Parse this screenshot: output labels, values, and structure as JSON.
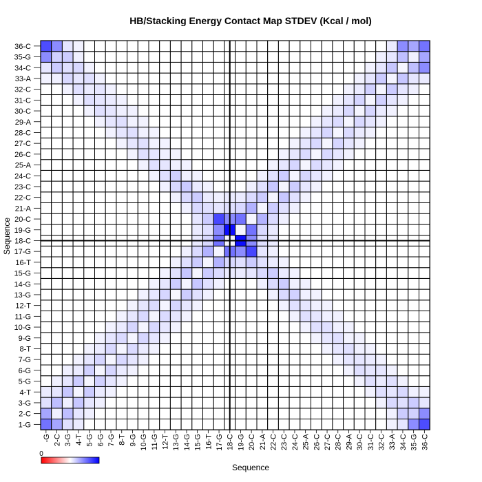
{
  "chart_data": {
    "type": "heatmap",
    "title": "HB/Stacking Energy Contact Map STDEV (Kcal / mol)",
    "xlabel": "Sequence",
    "ylabel": "Sequence",
    "labels": [
      "1-G",
      "2-C",
      "3-G",
      "4-T",
      "5-G",
      "6-G",
      "7-G",
      "8-T",
      "9-G",
      "10-G",
      "11-G",
      "12-T",
      "13-G",
      "14-G",
      "15-G",
      "16-T",
      "17-G",
      "18-C",
      "19-G",
      "20-C",
      "21-A",
      "22-C",
      "23-C",
      "24-C",
      "25-A",
      "26-C",
      "27-C",
      "28-C",
      "29-A",
      "30-C",
      "31-C",
      "32-C",
      "33-A",
      "34-C",
      "35-G",
      "36-C"
    ],
    "x_tick_labels_shown": [
      "-G",
      "2-C",
      "3-G",
      "4-T",
      "5-G",
      "6-G",
      "7-G",
      "8-T",
      "9-G",
      "10-G",
      "11-G",
      "12-T",
      "13-G",
      "14-G",
      "15-G",
      "16-T",
      "17-G",
      "18-C",
      "19-G",
      "20-C",
      "21-A",
      "22-C",
      "23-C",
      "24-C",
      "25-A",
      "26-C",
      "27-C",
      "28-C",
      "29-A",
      "30-C",
      "31-C",
      "32-C",
      "33-A",
      "34-C",
      "35-G",
      "36-C"
    ],
    "color_scale": {
      "low": "#ff0000",
      "mid": "#ffffff",
      "high": "#0000ff"
    },
    "colorbar_tick": "0",
    "divider_after_index": 17,
    "symmetry": "matrix symmetric about both diagonals",
    "values": [
      [
        0.55,
        0.35,
        0.12,
        0.08,
        0,
        0,
        0,
        0,
        0,
        0,
        0,
        0,
        0,
        0,
        0,
        0,
        0,
        0,
        0,
        0,
        0,
        0,
        0,
        0,
        0,
        0,
        0,
        0,
        0,
        0,
        0,
        0,
        0.05,
        0.1,
        0.45,
        0.7
      ],
      [
        0.35,
        0.06,
        0.25,
        0.1,
        0.06,
        0,
        0,
        0,
        0,
        0,
        0,
        0,
        0,
        0,
        0,
        0,
        0,
        0,
        0,
        0,
        0,
        0,
        0,
        0,
        0,
        0,
        0,
        0,
        0,
        0,
        0,
        0,
        0.06,
        0.2,
        0.18,
        0.45
      ],
      [
        0.12,
        0.25,
        0.06,
        0.22,
        0.1,
        0.06,
        0,
        0,
        0,
        0,
        0,
        0,
        0,
        0,
        0,
        0,
        0,
        0,
        0,
        0,
        0,
        0,
        0,
        0,
        0,
        0,
        0,
        0,
        0,
        0,
        0,
        0.05,
        0.15,
        0.12,
        0.2,
        0.1
      ],
      [
        0.08,
        0.1,
        0.22,
        0.04,
        0.2,
        0.08,
        0.05,
        0,
        0,
        0,
        0,
        0,
        0,
        0,
        0,
        0,
        0,
        0,
        0,
        0,
        0,
        0,
        0,
        0,
        0,
        0,
        0,
        0,
        0,
        0,
        0.05,
        0.12,
        0.1,
        0.15,
        0.06,
        0.05
      ],
      [
        0,
        0.06,
        0.1,
        0.2,
        0.04,
        0.18,
        0.1,
        0.05,
        0,
        0,
        0,
        0,
        0,
        0,
        0,
        0,
        0,
        0,
        0,
        0,
        0,
        0,
        0,
        0,
        0,
        0,
        0,
        0,
        0,
        0.05,
        0.12,
        0.08,
        0.12,
        0.05,
        0,
        0
      ],
      [
        0,
        0,
        0.06,
        0.08,
        0.18,
        0.04,
        0.16,
        0.08,
        0.05,
        0,
        0,
        0,
        0,
        0,
        0,
        0,
        0,
        0,
        0,
        0,
        0,
        0,
        0,
        0,
        0,
        0,
        0,
        0,
        0.05,
        0.12,
        0.1,
        0.1,
        0.05,
        0,
        0,
        0
      ],
      [
        0,
        0,
        0,
        0.05,
        0.1,
        0.16,
        0.04,
        0.15,
        0.1,
        0.05,
        0,
        0,
        0,
        0,
        0,
        0,
        0,
        0,
        0,
        0,
        0,
        0,
        0,
        0,
        0,
        0,
        0,
        0.05,
        0.1,
        0.1,
        0.08,
        0.05,
        0,
        0,
        0,
        0
      ],
      [
        0,
        0,
        0,
        0,
        0.05,
        0.08,
        0.15,
        0.04,
        0.14,
        0.08,
        0.05,
        0,
        0,
        0,
        0,
        0,
        0,
        0,
        0,
        0,
        0,
        0,
        0,
        0,
        0,
        0,
        0.05,
        0.1,
        0.12,
        0.06,
        0.05,
        0,
        0,
        0,
        0,
        0
      ],
      [
        0,
        0,
        0,
        0,
        0,
        0.05,
        0.1,
        0.14,
        0.04,
        0.16,
        0.1,
        0.05,
        0,
        0,
        0,
        0,
        0,
        0,
        0,
        0,
        0,
        0,
        0,
        0,
        0,
        0.05,
        0.1,
        0.12,
        0.05,
        0.05,
        0,
        0,
        0,
        0,
        0,
        0
      ],
      [
        0,
        0,
        0,
        0,
        0,
        0,
        0.05,
        0.08,
        0.16,
        0.04,
        0.15,
        0.1,
        0.05,
        0,
        0,
        0,
        0,
        0,
        0,
        0,
        0,
        0,
        0,
        0,
        0.05,
        0.12,
        0.12,
        0.06,
        0.05,
        0,
        0,
        0,
        0,
        0,
        0,
        0
      ],
      [
        0,
        0,
        0,
        0,
        0,
        0,
        0,
        0.05,
        0.1,
        0.15,
        0.04,
        0.14,
        0.1,
        0.05,
        0,
        0,
        0,
        0,
        0,
        0,
        0,
        0,
        0,
        0.05,
        0.12,
        0.1,
        0.06,
        0.05,
        0,
        0,
        0,
        0,
        0,
        0,
        0,
        0
      ],
      [
        0,
        0,
        0,
        0,
        0,
        0,
        0,
        0,
        0.05,
        0.1,
        0.14,
        0.04,
        0.16,
        0.1,
        0.05,
        0,
        0,
        0,
        0,
        0,
        0,
        0,
        0.05,
        0.12,
        0.1,
        0.06,
        0.05,
        0,
        0,
        0,
        0,
        0,
        0,
        0,
        0,
        0
      ],
      [
        0,
        0,
        0,
        0,
        0,
        0,
        0,
        0,
        0,
        0.05,
        0.1,
        0.16,
        0.04,
        0.2,
        0.12,
        0.06,
        0,
        0,
        0,
        0,
        0,
        0.06,
        0.15,
        0.18,
        0.06,
        0.05,
        0,
        0,
        0,
        0,
        0,
        0,
        0,
        0,
        0,
        0
      ],
      [
        0,
        0,
        0,
        0,
        0,
        0,
        0,
        0,
        0,
        0,
        0.05,
        0.1,
        0.2,
        0.04,
        0.22,
        0.12,
        0.06,
        0,
        0,
        0,
        0.06,
        0.15,
        0.2,
        0.06,
        0.05,
        0,
        0,
        0,
        0,
        0,
        0,
        0,
        0,
        0,
        0,
        0
      ],
      [
        0,
        0,
        0,
        0,
        0,
        0,
        0,
        0,
        0,
        0,
        0,
        0.05,
        0.12,
        0.22,
        0.04,
        0.2,
        0.14,
        0.08,
        0.08,
        0.1,
        0.15,
        0.2,
        0.08,
        0.05,
        0,
        0,
        0,
        0,
        0,
        0,
        0,
        0,
        0,
        0,
        0,
        0
      ],
      [
        0,
        0,
        0,
        0,
        0,
        0,
        0,
        0,
        0,
        0,
        0,
        0,
        0.06,
        0.12,
        0.2,
        0.04,
        0.3,
        0.15,
        0.12,
        0.2,
        0.12,
        0.08,
        0.05,
        0,
        0,
        0,
        0,
        0,
        0,
        0,
        0,
        0,
        0,
        0,
        0,
        0
      ],
      [
        0,
        0,
        0,
        0,
        0,
        0,
        0,
        0,
        0,
        0,
        0,
        0,
        0,
        0.06,
        0.14,
        0.3,
        0.04,
        0.55,
        0.45,
        0.72,
        0.1,
        0.06,
        0,
        0,
        0,
        0,
        0,
        0,
        0,
        0,
        0,
        0,
        0,
        0,
        0,
        0
      ],
      [
        0,
        0,
        0,
        0,
        0,
        0,
        0,
        0,
        0,
        0,
        0,
        0,
        0,
        0,
        0.08,
        0.15,
        0.55,
        0.04,
        0.95,
        0.45,
        0.12,
        0.08,
        0,
        0,
        0,
        0,
        0,
        0,
        0,
        0,
        0,
        0,
        0,
        0,
        0,
        0
      ],
      [
        0,
        0,
        0,
        0,
        0,
        0,
        0,
        0,
        0,
        0,
        0,
        0,
        0,
        0,
        0.08,
        0.12,
        0.45,
        0.95,
        0.04,
        0.55,
        0.15,
        0.08,
        0,
        0,
        0,
        0,
        0,
        0,
        0,
        0,
        0,
        0,
        0,
        0,
        0,
        0
      ],
      [
        0,
        0,
        0,
        0,
        0,
        0,
        0,
        0,
        0,
        0,
        0,
        0,
        0,
        0,
        0.1,
        0.2,
        0.72,
        0.45,
        0.55,
        0.04,
        0.3,
        0.14,
        0.06,
        0,
        0,
        0,
        0,
        0,
        0,
        0,
        0,
        0,
        0,
        0,
        0,
        0
      ],
      [
        0,
        0,
        0,
        0,
        0,
        0,
        0,
        0,
        0,
        0,
        0,
        0,
        0,
        0.06,
        0.15,
        0.12,
        0.1,
        0.12,
        0.15,
        0.3,
        0.04,
        0.2,
        0.12,
        0.06,
        0,
        0,
        0,
        0,
        0,
        0,
        0,
        0,
        0,
        0,
        0,
        0
      ],
      [
        0,
        0,
        0,
        0,
        0,
        0,
        0,
        0,
        0,
        0,
        0,
        0,
        0.06,
        0.15,
        0.2,
        0.08,
        0.06,
        0.08,
        0.08,
        0.14,
        0.2,
        0.04,
        0.22,
        0.12,
        0.05,
        0,
        0,
        0,
        0,
        0,
        0,
        0,
        0,
        0,
        0,
        0
      ],
      [
        0,
        0,
        0,
        0,
        0,
        0,
        0,
        0,
        0,
        0,
        0,
        0.05,
        0.15,
        0.2,
        0.08,
        0.05,
        0,
        0,
        0,
        0.06,
        0.12,
        0.22,
        0.04,
        0.2,
        0.1,
        0.05,
        0,
        0,
        0,
        0,
        0,
        0,
        0,
        0,
        0,
        0
      ],
      [
        0,
        0,
        0,
        0,
        0,
        0,
        0,
        0,
        0,
        0,
        0.05,
        0.12,
        0.18,
        0.06,
        0.05,
        0,
        0,
        0,
        0,
        0,
        0.06,
        0.12,
        0.2,
        0.04,
        0.16,
        0.1,
        0.05,
        0,
        0,
        0,
        0,
        0,
        0,
        0,
        0,
        0
      ],
      [
        0,
        0,
        0,
        0,
        0,
        0,
        0,
        0,
        0,
        0.05,
        0.12,
        0.1,
        0.06,
        0.05,
        0,
        0,
        0,
        0,
        0,
        0,
        0,
        0.05,
        0.1,
        0.16,
        0.04,
        0.14,
        0.1,
        0.05,
        0,
        0,
        0,
        0,
        0,
        0,
        0,
        0
      ],
      [
        0,
        0,
        0,
        0,
        0,
        0,
        0,
        0,
        0.05,
        0.12,
        0.1,
        0.06,
        0.05,
        0,
        0,
        0,
        0,
        0,
        0,
        0,
        0,
        0,
        0.05,
        0.1,
        0.14,
        0.04,
        0.15,
        0.1,
        0.05,
        0,
        0,
        0,
        0,
        0,
        0,
        0
      ],
      [
        0,
        0,
        0,
        0,
        0,
        0,
        0,
        0.05,
        0.1,
        0.12,
        0.06,
        0.05,
        0,
        0,
        0,
        0,
        0,
        0,
        0,
        0,
        0,
        0,
        0,
        0.05,
        0.1,
        0.15,
        0.04,
        0.16,
        0.1,
        0.05,
        0,
        0,
        0,
        0,
        0,
        0
      ],
      [
        0,
        0,
        0,
        0,
        0,
        0,
        0.05,
        0.1,
        0.12,
        0.06,
        0.05,
        0,
        0,
        0,
        0,
        0,
        0,
        0,
        0,
        0,
        0,
        0,
        0,
        0,
        0.05,
        0.1,
        0.16,
        0.04,
        0.14,
        0.08,
        0.05,
        0,
        0,
        0,
        0,
        0
      ],
      [
        0,
        0,
        0,
        0,
        0,
        0.05,
        0.1,
        0.12,
        0.05,
        0.05,
        0,
        0,
        0,
        0,
        0,
        0,
        0,
        0,
        0,
        0,
        0,
        0,
        0,
        0,
        0,
        0.05,
        0.1,
        0.14,
        0.04,
        0.15,
        0.1,
        0.05,
        0,
        0,
        0,
        0
      ],
      [
        0,
        0,
        0,
        0,
        0.05,
        0.12,
        0.1,
        0.06,
        0.05,
        0,
        0,
        0,
        0,
        0,
        0,
        0,
        0,
        0,
        0,
        0,
        0,
        0,
        0,
        0,
        0,
        0,
        0.05,
        0.08,
        0.15,
        0.04,
        0.16,
        0.08,
        0.05,
        0,
        0,
        0
      ],
      [
        0,
        0,
        0,
        0.05,
        0.12,
        0.1,
        0.08,
        0.05,
        0,
        0,
        0,
        0,
        0,
        0,
        0,
        0,
        0,
        0,
        0,
        0,
        0,
        0,
        0,
        0,
        0,
        0,
        0,
        0.05,
        0.1,
        0.16,
        0.04,
        0.18,
        0.1,
        0.05,
        0,
        0
      ],
      [
        0,
        0,
        0.05,
        0.12,
        0.08,
        0.1,
        0.05,
        0,
        0,
        0,
        0,
        0,
        0,
        0,
        0,
        0,
        0,
        0,
        0,
        0,
        0,
        0,
        0,
        0,
        0,
        0,
        0,
        0,
        0.05,
        0.08,
        0.18,
        0.04,
        0.2,
        0.1,
        0.06,
        0
      ],
      [
        0.05,
        0.06,
        0.15,
        0.1,
        0.12,
        0.05,
        0,
        0,
        0,
        0,
        0,
        0,
        0,
        0,
        0,
        0,
        0,
        0,
        0,
        0,
        0,
        0,
        0,
        0,
        0,
        0,
        0,
        0,
        0,
        0.05,
        0.1,
        0.2,
        0.04,
        0.22,
        0.1,
        0.08
      ],
      [
        0.1,
        0.2,
        0.12,
        0.15,
        0.05,
        0,
        0,
        0,
        0,
        0,
        0,
        0,
        0,
        0,
        0,
        0,
        0,
        0,
        0,
        0,
        0,
        0,
        0,
        0,
        0,
        0,
        0,
        0,
        0,
        0,
        0.05,
        0.1,
        0.22,
        0.04,
        0.25,
        0.45
      ],
      [
        0.45,
        0.18,
        0.2,
        0.06,
        0,
        0,
        0,
        0,
        0,
        0,
        0,
        0,
        0,
        0,
        0,
        0,
        0,
        0,
        0,
        0,
        0,
        0,
        0,
        0,
        0,
        0,
        0,
        0,
        0,
        0,
        0,
        0.06,
        0.1,
        0.25,
        0.06,
        0.35
      ],
      [
        0.7,
        0.45,
        0.1,
        0.05,
        0,
        0,
        0,
        0,
        0,
        0,
        0,
        0,
        0,
        0,
        0,
        0,
        0,
        0,
        0,
        0,
        0,
        0,
        0,
        0,
        0,
        0,
        0,
        0,
        0,
        0,
        0,
        0,
        0.08,
        0.45,
        0.35,
        0.55
      ]
    ]
  }
}
